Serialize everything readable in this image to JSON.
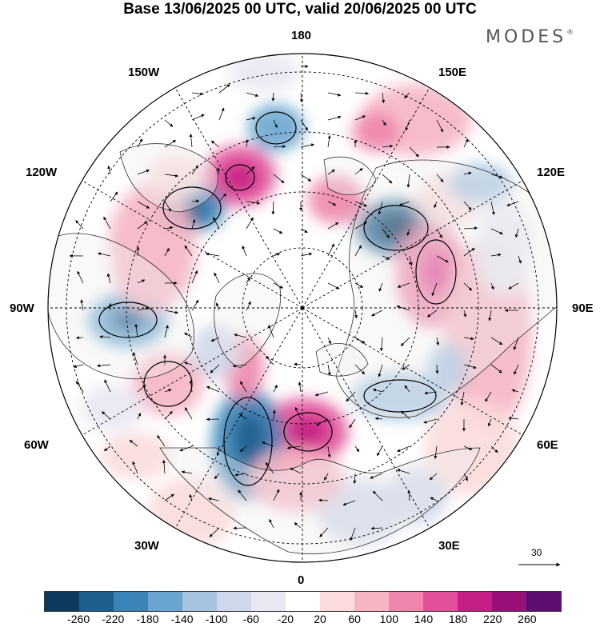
{
  "title": "Base 13/06/2025 00 UTC, valid 20/06/2025 00 UTC",
  "brand": "MODES",
  "brand_mark": "®",
  "lon_labels": {
    "top": "180",
    "bottom": "0",
    "left": "90W",
    "right": "90E",
    "upper_left_1": "150W",
    "upper_left_2": "120W",
    "lower_left_1": "60W",
    "lower_left_2": "30W",
    "upper_right_1": "150E",
    "upper_right_2": "120E",
    "lower_right_1": "60E",
    "lower_right_2": "30E"
  },
  "reference_vector": {
    "value": "30",
    "icon": "arrow-right-icon"
  },
  "colorbar": {
    "colors": [
      "#0d3a5c",
      "#1f5f8e",
      "#3a84b8",
      "#6aa5cf",
      "#a6c3e0",
      "#cfd7ea",
      "#e8e8f2",
      "#ffffff",
      "#fbdbdb",
      "#f5b5c3",
      "#ee86ac",
      "#e2509a",
      "#c51e84",
      "#971178",
      "#5e0e73"
    ],
    "ticks": [
      "-260",
      "-220",
      "-180",
      "-140",
      "-100",
      "-60",
      "-20",
      "20",
      "60",
      "100",
      "140",
      "180",
      "220",
      "260"
    ]
  }
}
